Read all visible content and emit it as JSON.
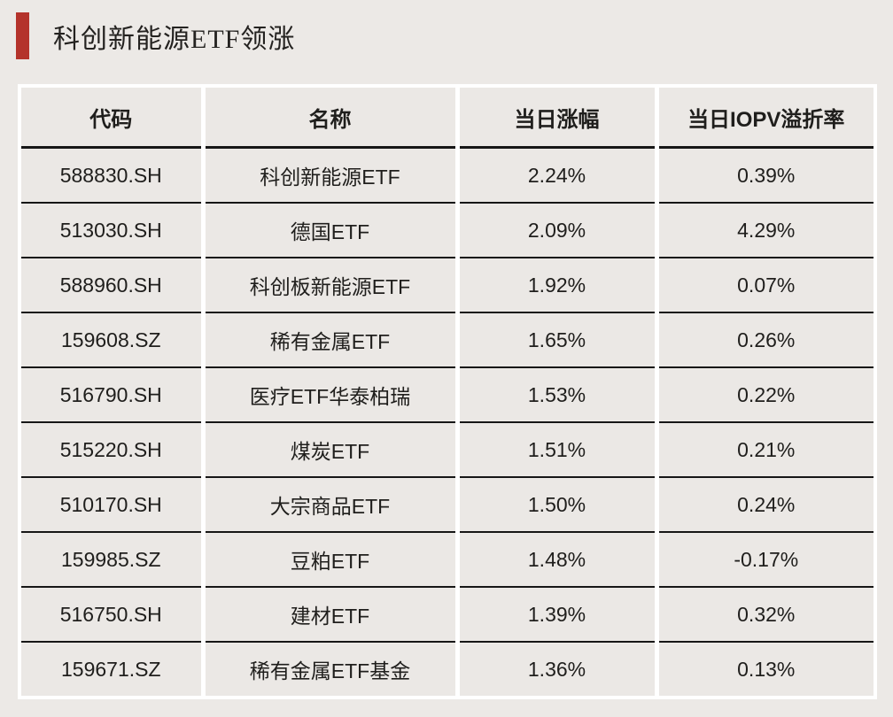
{
  "title": {
    "text": "科创新能源ETF领涨"
  },
  "accent_color": "#B4332B",
  "table": {
    "headers": [
      "代码",
      "名称",
      "当日涨幅",
      "当日IOPV溢折率"
    ],
    "rows": [
      {
        "code": "588830.SH",
        "name": "科创新能源ETF",
        "change": "2.24%",
        "iopv": "0.39%"
      },
      {
        "code": "513030.SH",
        "name": "德国ETF",
        "change": "2.09%",
        "iopv": "4.29%"
      },
      {
        "code": "588960.SH",
        "name": "科创板新能源ETF",
        "change": "1.92%",
        "iopv": "0.07%"
      },
      {
        "code": "159608.SZ",
        "name": "稀有金属ETF",
        "change": "1.65%",
        "iopv": "0.26%"
      },
      {
        "code": "516790.SH",
        "name": "医疗ETF华泰柏瑞",
        "change": "1.53%",
        "iopv": "0.22%"
      },
      {
        "code": "515220.SH",
        "name": "煤炭ETF",
        "change": "1.51%",
        "iopv": "0.21%"
      },
      {
        "code": "510170.SH",
        "name": "大宗商品ETF",
        "change": "1.50%",
        "iopv": "0.24%"
      },
      {
        "code": "159985.SZ",
        "name": "豆粕ETF",
        "change": "1.48%",
        "iopv": "-0.17%"
      },
      {
        "code": "516750.SH",
        "name": "建材ETF",
        "change": "1.39%",
        "iopv": "0.32%"
      },
      {
        "code": "159671.SZ",
        "name": "稀有金属ETF基金",
        "change": "1.36%",
        "iopv": "0.13%"
      }
    ]
  },
  "chart_data": {
    "type": "table",
    "title": "科创新能源ETF领涨",
    "columns": [
      "代码",
      "名称",
      "当日涨幅",
      "当日IOPV溢折率"
    ],
    "rows": [
      [
        "588830.SH",
        "科创新能源ETF",
        "2.24%",
        "0.39%"
      ],
      [
        "513030.SH",
        "德国ETF",
        "2.09%",
        "4.29%"
      ],
      [
        "588960.SH",
        "科创板新能源ETF",
        "1.92%",
        "0.07%"
      ],
      [
        "159608.SZ",
        "稀有金属ETF",
        "1.65%",
        "0.26%"
      ],
      [
        "516790.SH",
        "医疗ETF华泰柏瑞",
        "1.53%",
        "0.22%"
      ],
      [
        "515220.SH",
        "煤炭ETF",
        "1.51%",
        "0.21%"
      ],
      [
        "510170.SH",
        "大宗商品ETF",
        "1.50%",
        "0.24%"
      ],
      [
        "159985.SZ",
        "豆粕ETF",
        "1.48%",
        "-0.17%"
      ],
      [
        "516750.SH",
        "建材ETF",
        "1.39%",
        "0.32%"
      ],
      [
        "159671.SZ",
        "稀有金属ETF基金",
        "1.36%",
        "0.13%"
      ]
    ]
  }
}
